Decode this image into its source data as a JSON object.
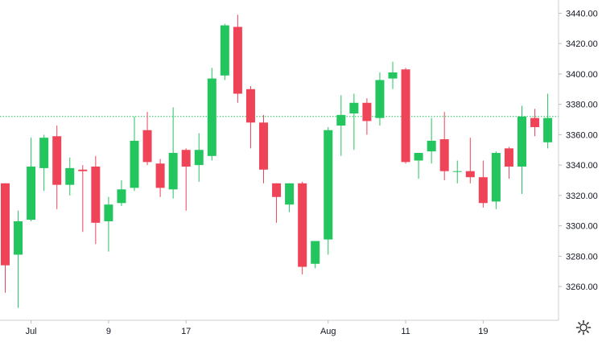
{
  "chart_data": {
    "type": "candlestick",
    "x_tick_labels": [
      "Jul",
      "9",
      "17",
      "Aug",
      "11",
      "19"
    ],
    "y_tick_labels": [
      "3260.00",
      "3280.00",
      "3300.00",
      "3320.00",
      "3340.00",
      "3360.00",
      "3380.00",
      "3400.00",
      "3420.00",
      "3440.00"
    ],
    "y_ticks": [
      3260,
      3280,
      3300,
      3320,
      3340,
      3360,
      3380,
      3400,
      3420,
      3440
    ],
    "ylim": [
      3237.8,
      3448.7
    ],
    "reference_line": 3372,
    "grid": false,
    "up_color": "#22c55e",
    "down_color": "#ef4458",
    "reference_line_color": "#22c55e",
    "candles": [
      {
        "label": "",
        "o": 3328,
        "h": 3328,
        "l": 3256,
        "c": 3274
      },
      {
        "label": "",
        "o": 3281,
        "h": 3310,
        "l": 3246,
        "c": 3303
      },
      {
        "label": "Jul",
        "o": 3304,
        "h": 3358,
        "l": 3303,
        "c": 3339
      },
      {
        "label": "",
        "o": 3338,
        "h": 3360,
        "l": 3323,
        "c": 3358
      },
      {
        "label": "",
        "o": 3359,
        "h": 3366,
        "l": 3311,
        "c": 3327
      },
      {
        "label": "",
        "o": 3327,
        "h": 3345,
        "l": 3320,
        "c": 3338
      },
      {
        "label": "",
        "o": 3337,
        "h": 3340,
        "l": 3296,
        "c": 3336
      },
      {
        "label": "",
        "o": 3339,
        "h": 3346,
        "l": 3288,
        "c": 3302
      },
      {
        "label": "9",
        "o": 3303,
        "h": 3319,
        "l": 3283,
        "c": 3314
      },
      {
        "label": "",
        "o": 3315,
        "h": 3330,
        "l": 3313,
        "c": 3324
      },
      {
        "label": "",
        "o": 3325,
        "h": 3372,
        "l": 3323,
        "c": 3356
      },
      {
        "label": "",
        "o": 3363,
        "h": 3375,
        "l": 3340,
        "c": 3342
      },
      {
        "label": "",
        "o": 3341,
        "h": 3344,
        "l": 3319,
        "c": 3325
      },
      {
        "label": "",
        "o": 3324,
        "h": 3378,
        "l": 3318,
        "c": 3348
      },
      {
        "label": "17",
        "o": 3350,
        "h": 3351,
        "l": 3310,
        "c": 3339
      },
      {
        "label": "",
        "o": 3340,
        "h": 3361,
        "l": 3329,
        "c": 3350
      },
      {
        "label": "",
        "o": 3346,
        "h": 3404,
        "l": 3343,
        "c": 3397
      },
      {
        "label": "",
        "o": 3399,
        "h": 3433,
        "l": 3396,
        "c": 3432
      },
      {
        "label": "",
        "o": 3431,
        "h": 3439,
        "l": 3381,
        "c": 3387
      },
      {
        "label": "",
        "o": 3390,
        "h": 3392,
        "l": 3351,
        "c": 3368
      },
      {
        "label": "",
        "o": 3368,
        "h": 3373,
        "l": 3328,
        "c": 3337
      },
      {
        "label": "",
        "o": 3328,
        "h": 3328,
        "l": 3302,
        "c": 3319
      },
      {
        "label": "",
        "o": 3314,
        "h": 3328,
        "l": 3309,
        "c": 3328
      },
      {
        "label": "",
        "o": 3328,
        "h": 3329,
        "l": 3268,
        "c": 3273
      },
      {
        "label": "",
        "o": 3275,
        "h": 3290,
        "l": 3272,
        "c": 3290
      },
      {
        "label": "Aug",
        "o": 3291,
        "h": 3365,
        "l": 3281,
        "c": 3363
      },
      {
        "label": "",
        "o": 3366,
        "h": 3386,
        "l": 3346,
        "c": 3373
      },
      {
        "label": "",
        "o": 3374,
        "h": 3387,
        "l": 3350,
        "c": 3381
      },
      {
        "label": "",
        "o": 3381,
        "h": 3384,
        "l": 3360,
        "c": 3369
      },
      {
        "label": "",
        "o": 3371,
        "h": 3401,
        "l": 3366,
        "c": 3396
      },
      {
        "label": "",
        "o": 3397,
        "h": 3408,
        "l": 3390,
        "c": 3401
      },
      {
        "label": "11",
        "o": 3403,
        "h": 3404,
        "l": 3341,
        "c": 3342
      },
      {
        "label": "",
        "o": 3343,
        "h": 3348,
        "l": 3331,
        "c": 3348
      },
      {
        "label": "",
        "o": 3349,
        "h": 3371,
        "l": 3341,
        "c": 3356
      },
      {
        "label": "",
        "o": 3357,
        "h": 3375,
        "l": 3330,
        "c": 3336
      },
      {
        "label": "",
        "o": 3336,
        "h": 3343,
        "l": 3328,
        "c": 3336
      },
      {
        "label": "",
        "o": 3336,
        "h": 3358,
        "l": 3328,
        "c": 3332
      },
      {
        "label": "19",
        "o": 3332,
        "h": 3343,
        "l": 3312,
        "c": 3315
      },
      {
        "label": "",
        "o": 3316,
        "h": 3349,
        "l": 3311,
        "c": 3348
      },
      {
        "label": "",
        "o": 3351,
        "h": 3352,
        "l": 3331,
        "c": 3339
      },
      {
        "label": "",
        "o": 3339,
        "h": 3379,
        "l": 3321,
        "c": 3372
      },
      {
        "label": "",
        "o": 3371,
        "h": 3377,
        "l": 3359,
        "c": 3365
      },
      {
        "label": "",
        "o": 3355,
        "h": 3387,
        "l": 3351,
        "c": 3371
      }
    ]
  },
  "toolbar": {
    "settings_icon": "gear-icon"
  }
}
